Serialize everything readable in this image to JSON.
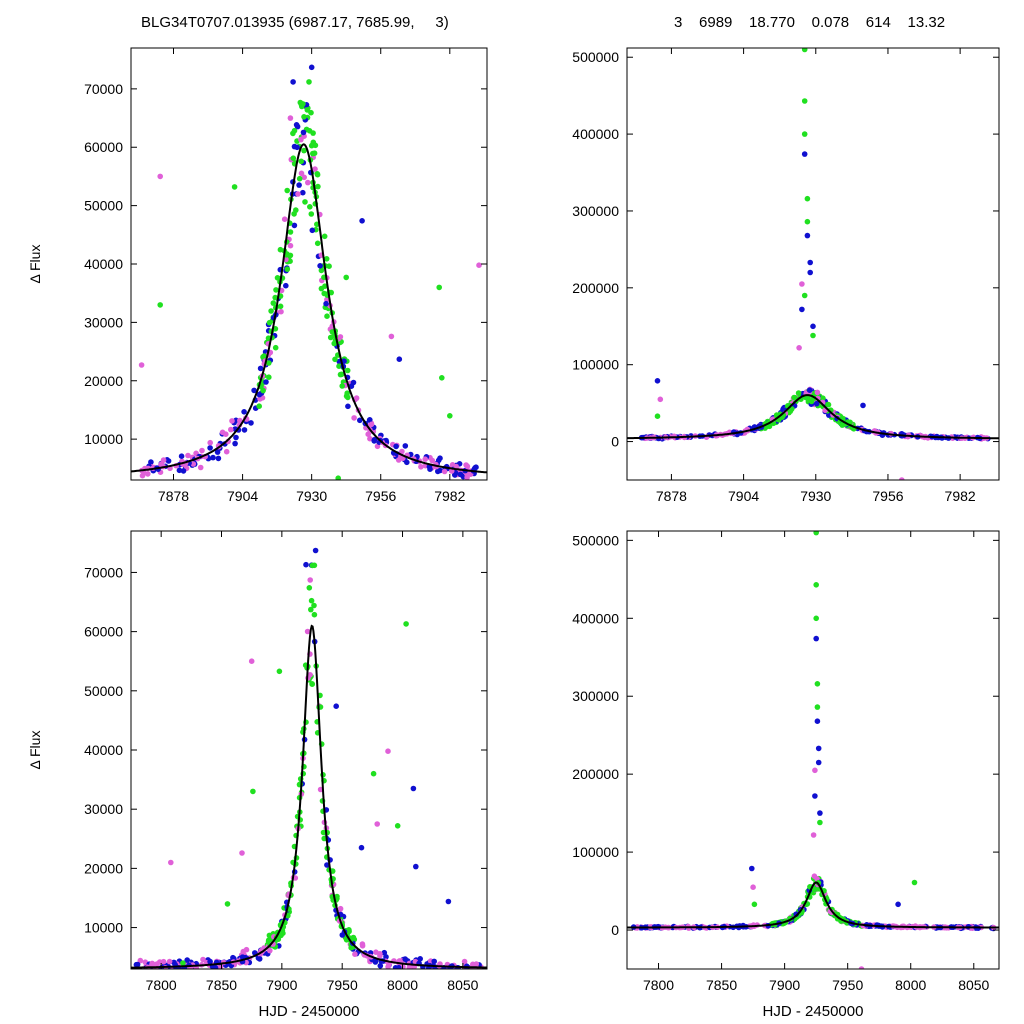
{
  "header": {
    "left": "BLG34T0707.013935 (6987.17, 7685.99,     3)",
    "right": "3    6989    18.770    0.078    614    13.32"
  },
  "colors": {
    "magenta": "#e060d8",
    "blue": "#1010d0",
    "green": "#20e020",
    "model": "#000000"
  },
  "chart_data": [
    {
      "id": "top-left",
      "type": "scatter",
      "ylabel": "Δ Flux",
      "xlabel": "",
      "xlim": [
        7862,
        7996
      ],
      "ylim": [
        3000,
        77000
      ],
      "xticks": [
        7878,
        7904,
        7930,
        7956,
        7982
      ],
      "yticks": [
        10000,
        20000,
        30000,
        40000,
        50000,
        60000,
        70000
      ],
      "model": {
        "t0": 7927,
        "fmax": 57500,
        "hw": 10.5,
        "base": 3000
      },
      "outliers": [
        {
          "s": "magenta",
          "x": 7873,
          "y": 55000
        },
        {
          "s": "green",
          "x": 7873,
          "y": 33000
        },
        {
          "s": "magenta",
          "x": 7866,
          "y": 22700
        },
        {
          "s": "green",
          "x": 7901,
          "y": 53200
        },
        {
          "s": "blue",
          "x": 7923,
          "y": 71200
        },
        {
          "s": "blue",
          "x": 7930,
          "y": 73700
        },
        {
          "s": "green",
          "x": 7929,
          "y": 71200
        },
        {
          "s": "magenta",
          "x": 7922,
          "y": 65000
        },
        {
          "s": "blue",
          "x": 7949,
          "y": 47400
        },
        {
          "s": "green",
          "x": 7978,
          "y": 36000
        },
        {
          "s": "magenta",
          "x": 7993,
          "y": 39800
        },
        {
          "s": "green",
          "x": 7979,
          "y": 20500
        },
        {
          "s": "blue",
          "x": 7963,
          "y": 23700
        },
        {
          "s": "magenta",
          "x": 7960,
          "y": 27600
        },
        {
          "s": "green",
          "x": 7943,
          "y": 37700
        },
        {
          "s": "green",
          "x": 7982,
          "y": 14000
        },
        {
          "s": "green",
          "x": 7940,
          "y": 3300
        }
      ],
      "scatter_seed": 7
    },
    {
      "id": "top-right",
      "type": "scatter",
      "ylabel": "",
      "xlabel": "",
      "xlim": [
        7862,
        7996
      ],
      "ylim": [
        -50000,
        512000
      ],
      "xticks": [
        7878,
        7904,
        7930,
        7956,
        7982
      ],
      "yticks": [
        0,
        100000,
        200000,
        300000,
        400000,
        500000
      ],
      "model": {
        "t0": 7927,
        "fmax": 57500,
        "hw": 10.5,
        "base": 3000
      },
      "outliers": [
        {
          "s": "green",
          "x": 7926,
          "y": 510000
        },
        {
          "s": "green",
          "x": 7926,
          "y": 443000
        },
        {
          "s": "green",
          "x": 7926,
          "y": 400000
        },
        {
          "s": "blue",
          "x": 7926,
          "y": 374000
        },
        {
          "s": "green",
          "x": 7927,
          "y": 316000
        },
        {
          "s": "green",
          "x": 7927,
          "y": 286000
        },
        {
          "s": "blue",
          "x": 7927,
          "y": 268000
        },
        {
          "s": "blue",
          "x": 7928,
          "y": 233000
        },
        {
          "s": "blue",
          "x": 7928,
          "y": 220000
        },
        {
          "s": "magenta",
          "x": 7925,
          "y": 205000
        },
        {
          "s": "green",
          "x": 7926,
          "y": 190000
        },
        {
          "s": "blue",
          "x": 7925,
          "y": 172000
        },
        {
          "s": "blue",
          "x": 7929,
          "y": 150000
        },
        {
          "s": "green",
          "x": 7929,
          "y": 138000
        },
        {
          "s": "magenta",
          "x": 7924,
          "y": 122000
        },
        {
          "s": "blue",
          "x": 7873,
          "y": 79000
        },
        {
          "s": "magenta",
          "x": 7874,
          "y": 55000
        },
        {
          "s": "green",
          "x": 7873,
          "y": 33000
        },
        {
          "s": "blue",
          "x": 7947,
          "y": 47000
        },
        {
          "s": "magenta",
          "x": 7961,
          "y": -50000
        }
      ],
      "scatter_seed": 11
    },
    {
      "id": "bottom-left",
      "type": "scatter",
      "ylabel": "Δ Flux",
      "xlabel": "HJD - 2450000",
      "xlim": [
        7775,
        8070
      ],
      "ylim": [
        3000,
        77000
      ],
      "xticks": [
        7800,
        7850,
        7900,
        7950,
        8000,
        8050
      ],
      "yticks": [
        10000,
        20000,
        30000,
        40000,
        50000,
        60000,
        70000
      ],
      "model": {
        "t0": 7925,
        "fmax": 58000,
        "hw": 9.5,
        "base": 3000
      },
      "outliers": [
        {
          "s": "magenta",
          "x": 7808,
          "y": 21000
        },
        {
          "s": "magenta",
          "x": 7867,
          "y": 22600
        },
        {
          "s": "magenta",
          "x": 7875,
          "y": 55000
        },
        {
          "s": "green",
          "x": 7876,
          "y": 33000
        },
        {
          "s": "green",
          "x": 7898,
          "y": 53300
        },
        {
          "s": "blue",
          "x": 7920,
          "y": 71300
        },
        {
          "s": "blue",
          "x": 7928,
          "y": 73700
        },
        {
          "s": "green",
          "x": 7927,
          "y": 71200
        },
        {
          "s": "blue",
          "x": 7945,
          "y": 47400
        },
        {
          "s": "green",
          "x": 7976,
          "y": 36000
        },
        {
          "s": "magenta",
          "x": 7988,
          "y": 39800
        },
        {
          "s": "green",
          "x": 8003,
          "y": 61300
        },
        {
          "s": "blue",
          "x": 8009,
          "y": 33500
        },
        {
          "s": "blue",
          "x": 8011,
          "y": 20300
        },
        {
          "s": "magenta",
          "x": 7979,
          "y": 27500
        },
        {
          "s": "green",
          "x": 7996,
          "y": 27200
        },
        {
          "s": "blue",
          "x": 7966,
          "y": 23500
        },
        {
          "s": "green",
          "x": 7855,
          "y": 14000
        },
        {
          "s": "blue",
          "x": 8038,
          "y": 14400
        },
        {
          "s": "green",
          "x": 7818,
          "y": 4000
        }
      ],
      "scatter_seed": 19
    },
    {
      "id": "bottom-right",
      "type": "scatter",
      "ylabel": "",
      "xlabel": "HJD - 2450000",
      "xlim": [
        7775,
        8070
      ],
      "ylim": [
        -50000,
        512000
      ],
      "xticks": [
        7800,
        7850,
        7900,
        7950,
        8000,
        8050
      ],
      "yticks": [
        0,
        100000,
        200000,
        300000,
        400000,
        500000
      ],
      "model": {
        "t0": 7925,
        "fmax": 58000,
        "hw": 9.5,
        "base": 3000
      },
      "outliers": [
        {
          "s": "green",
          "x": 7925,
          "y": 510000
        },
        {
          "s": "green",
          "x": 7925,
          "y": 443000
        },
        {
          "s": "green",
          "x": 7925,
          "y": 400000
        },
        {
          "s": "blue",
          "x": 7925,
          "y": 374000
        },
        {
          "s": "green",
          "x": 7926,
          "y": 316000
        },
        {
          "s": "green",
          "x": 7926,
          "y": 286000
        },
        {
          "s": "blue",
          "x": 7926,
          "y": 268000
        },
        {
          "s": "blue",
          "x": 7927,
          "y": 233000
        },
        {
          "s": "blue",
          "x": 7927,
          "y": 215000
        },
        {
          "s": "magenta",
          "x": 7924,
          "y": 205000
        },
        {
          "s": "blue",
          "x": 7924,
          "y": 172000
        },
        {
          "s": "blue",
          "x": 7928,
          "y": 150000
        },
        {
          "s": "green",
          "x": 7928,
          "y": 138000
        },
        {
          "s": "magenta",
          "x": 7923,
          "y": 122000
        },
        {
          "s": "blue",
          "x": 7874,
          "y": 79000
        },
        {
          "s": "magenta",
          "x": 7875,
          "y": 55000
        },
        {
          "s": "green",
          "x": 8003,
          "y": 61000
        },
        {
          "s": "blue",
          "x": 7990,
          "y": 33000
        },
        {
          "s": "magenta",
          "x": 7961,
          "y": -50000
        },
        {
          "s": "green",
          "x": 7876,
          "y": 33000
        }
      ],
      "scatter_seed": 23
    }
  ]
}
